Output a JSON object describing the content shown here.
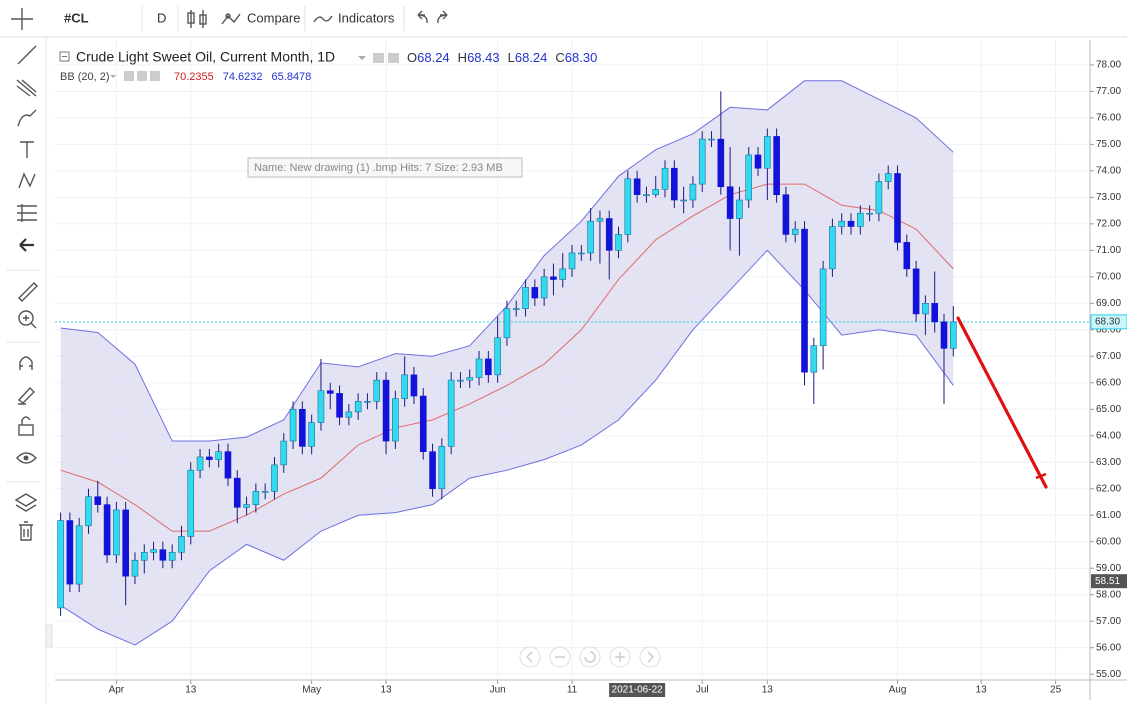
{
  "toolbar": {
    "symbol": "#CL",
    "interval": "D",
    "compare": "Compare",
    "indicators": "Indicators"
  },
  "tooltip": "Name: New drawing (1) .bmp Hits: 7 Size: 2.93 MB",
  "chart_data": {
    "type": "candlestick",
    "title": "Crude Light Sweet Oil, Current Month, 1D",
    "ohlc_legend": [
      {
        "key": "O",
        "value": "68.24"
      },
      {
        "key": "H",
        "value": "68.43"
      },
      {
        "key": "L",
        "value": "68.24"
      },
      {
        "key": "C",
        "value": "68.30"
      }
    ],
    "x": [
      -6,
      -5,
      -4,
      -3,
      -2,
      -1,
      0,
      1,
      2,
      3,
      4,
      5,
      6,
      7,
      8,
      9,
      10,
      11,
      12,
      13,
      14,
      15,
      16,
      17,
      18,
      19,
      20,
      21,
      22,
      23,
      24,
      25,
      26,
      27,
      28,
      29,
      30,
      31,
      32,
      33,
      34,
      35,
      36,
      37,
      38,
      39,
      40,
      41,
      42,
      43,
      44,
      45,
      46,
      47,
      48,
      49,
      50,
      51,
      52,
      53,
      54,
      55,
      56,
      57,
      58,
      59,
      60,
      61,
      62,
      63,
      64,
      65,
      66,
      67,
      68,
      69,
      70,
      71,
      72,
      73,
      74,
      75,
      76,
      77,
      78,
      79,
      80,
      81,
      82,
      83,
      84,
      85,
      86,
      87,
      88,
      89,
      90
    ],
    "open": [
      57.5,
      60.8,
      58.4,
      60.6,
      61.7,
      61.4,
      59.5,
      61.2,
      58.7,
      59.3,
      59.6,
      59.7,
      59.3,
      59.6,
      60.2,
      62.7,
      63.2,
      63.1,
      63.4,
      62.4,
      61.3,
      61.4,
      61.9,
      61.9,
      62.9,
      63.8,
      65.0,
      63.6,
      64.5,
      65.7,
      65.6,
      64.7,
      64.9,
      65.3,
      65.3,
      66.1,
      63.8,
      65.4,
      66.3,
      65.5,
      63.4,
      62.0,
      63.6,
      66.1,
      66.1,
      66.2,
      66.9,
      66.3,
      67.7,
      68.8,
      68.8,
      69.6,
      69.2,
      70.0,
      69.9,
      70.3,
      70.9,
      70.9,
      72.1,
      72.2,
      71.0,
      71.6,
      73.7,
      73.1,
      73.1,
      73.3,
      74.1,
      72.9,
      72.9,
      73.5,
      75.2,
      75.2,
      73.4,
      72.2,
      72.9,
      74.6,
      74.1,
      75.3,
      73.1,
      71.6,
      71.8,
      66.4,
      67.4,
      70.3,
      71.9,
      72.1,
      71.9,
      72.4,
      72.4,
      73.6,
      73.9,
      71.3,
      70.3,
      68.6,
      69.0,
      68.3,
      67.3
    ],
    "high": [
      61.1,
      61.1,
      60.9,
      62.0,
      62.3,
      61.7,
      61.5,
      61.5,
      59.6,
      59.9,
      60.0,
      60.0,
      59.9,
      60.6,
      63.0,
      63.5,
      63.5,
      63.7,
      63.7,
      62.7,
      61.7,
      62.2,
      62.2,
      63.2,
      64.1,
      65.3,
      65.3,
      64.8,
      66.9,
      66.0,
      65.9,
      65.2,
      65.6,
      65.6,
      66.4,
      66.4,
      65.7,
      67.0,
      66.6,
      65.8,
      63.7,
      63.9,
      66.4,
      66.4,
      66.5,
      67.2,
      67.2,
      68.5,
      69.1,
      69.1,
      69.9,
      69.9,
      70.3,
      70.5,
      70.9,
      71.2,
      71.2,
      72.6,
      72.5,
      72.5,
      71.9,
      74.0,
      74.0,
      73.4,
      73.8,
      74.4,
      74.4,
      73.4,
      73.8,
      75.5,
      75.5,
      77.0,
      74.9,
      73.4,
      74.9,
      74.9,
      75.6,
      75.6,
      73.4,
      72.1,
      72.1,
      67.7,
      70.6,
      72.2,
      72.4,
      72.4,
      72.7,
      72.7,
      73.9,
      74.2,
      74.2,
      71.6,
      70.6,
      69.3,
      70.2,
      68.6,
      68.9
    ],
    "low": [
      57.2,
      58.1,
      58.1,
      60.3,
      61.1,
      59.2,
      59.2,
      57.6,
      58.4,
      58.8,
      59.3,
      59.0,
      59.0,
      59.3,
      59.9,
      62.4,
      62.8,
      62.8,
      62.1,
      60.7,
      61.0,
      61.1,
      61.6,
      61.6,
      62.6,
      63.5,
      63.3,
      63.3,
      64.2,
      65.0,
      64.4,
      64.4,
      64.6,
      65.0,
      65.0,
      63.3,
      63.5,
      65.1,
      65.2,
      63.1,
      61.7,
      61.6,
      63.3,
      65.8,
      65.8,
      65.9,
      66.0,
      66.0,
      67.4,
      68.5,
      68.5,
      68.9,
      68.9,
      69.3,
      69.6,
      70.0,
      70.6,
      70.6,
      70.5,
      69.9,
      70.7,
      71.3,
      72.8,
      72.8,
      73.0,
      73.0,
      72.6,
      72.4,
      72.6,
      73.2,
      74.9,
      73.1,
      71.0,
      70.8,
      72.6,
      73.8,
      72.9,
      72.8,
      71.3,
      71.3,
      65.9,
      65.2,
      66.5,
      70.0,
      71.6,
      71.6,
      71.6,
      72.1,
      72.1,
      73.3,
      71.0,
      70.0,
      68.3,
      67.8,
      67.9,
      65.2,
      67.0
    ],
    "close": [
      60.8,
      58.4,
      60.6,
      61.7,
      61.4,
      59.5,
      61.2,
      58.7,
      59.3,
      59.6,
      59.7,
      59.3,
      59.6,
      60.2,
      62.7,
      63.2,
      63.1,
      63.4,
      62.4,
      61.3,
      61.4,
      61.9,
      61.9,
      62.9,
      63.8,
      65.0,
      63.6,
      64.5,
      65.7,
      65.6,
      64.7,
      64.9,
      65.3,
      65.3,
      66.1,
      63.8,
      65.4,
      66.3,
      65.5,
      63.4,
      62.0,
      63.6,
      66.1,
      66.1,
      66.2,
      66.9,
      66.3,
      67.7,
      68.8,
      68.8,
      69.6,
      69.2,
      70.0,
      69.9,
      70.3,
      70.9,
      70.9,
      72.1,
      72.2,
      71.0,
      71.6,
      73.7,
      73.1,
      73.1,
      73.3,
      74.1,
      72.9,
      72.9,
      73.5,
      75.2,
      75.2,
      73.4,
      72.2,
      72.9,
      74.6,
      74.1,
      75.3,
      73.1,
      71.6,
      71.8,
      66.4,
      67.4,
      70.3,
      71.9,
      72.1,
      71.9,
      72.4,
      72.4,
      73.6,
      73.9,
      71.3,
      70.3,
      68.6,
      69.0,
      68.3,
      67.3,
      68.3
    ],
    "up_color": "#33d9ef",
    "down_color": "#1212d8",
    "wick_color": "#1a1a80",
    "xlim": [
      -6.6,
      104.7
    ],
    "xticks": [
      {
        "value": 0,
        "label": "Apr"
      },
      {
        "value": 8,
        "label": "13"
      },
      {
        "value": 21,
        "label": "May"
      },
      {
        "value": 29,
        "label": "13"
      },
      {
        "value": 41,
        "label": "Jun"
      },
      {
        "value": 49,
        "label": "11"
      },
      {
        "value": 63,
        "label": "Jul"
      },
      {
        "value": 70,
        "label": "13"
      },
      {
        "value": 84,
        "label": "Aug"
      },
      {
        "value": 93,
        "label": "13"
      },
      {
        "value": 101,
        "label": "25"
      }
    ],
    "crosshair_x": {
      "value": 56,
      "label": "2021-06-22"
    },
    "ylim": [
      54.78,
      78.94
    ],
    "yticks": [
      {
        "value": 55,
        "label": "55.00"
      },
      {
        "value": 56,
        "label": "56.00"
      },
      {
        "value": 57,
        "label": "57.00"
      },
      {
        "value": 58,
        "label": "58.00"
      },
      {
        "value": 59,
        "label": "59.00"
      },
      {
        "value": 60,
        "label": "60.00"
      },
      {
        "value": 61,
        "label": "61.00"
      },
      {
        "value": 62,
        "label": "62.00"
      },
      {
        "value": 63,
        "label": "63.00"
      },
      {
        "value": 64,
        "label": "64.00"
      },
      {
        "value": 65,
        "label": "65.00"
      },
      {
        "value": 66,
        "label": "66.00"
      },
      {
        "value": 67,
        "label": "67.00"
      },
      {
        "value": 68,
        "label": "68.00"
      },
      {
        "value": 69,
        "label": "69.00"
      },
      {
        "value": 70,
        "label": "70.00"
      },
      {
        "value": 71,
        "label": "71.00"
      },
      {
        "value": 72,
        "label": "72.00"
      },
      {
        "value": 73,
        "label": "73.00"
      },
      {
        "value": 74,
        "label": "74.00"
      },
      {
        "value": 75,
        "label": "75.00"
      },
      {
        "value": 76,
        "label": "76.00"
      },
      {
        "value": 77,
        "label": "77.00"
      },
      {
        "value": 78,
        "label": "78.00"
      }
    ],
    "grid": true,
    "last_price": {
      "value": 68.3,
      "label": "68.30"
    },
    "price_marker": {
      "value": 58.51,
      "label": "58.51"
    },
    "indicator": {
      "name": "BB (20, 2)",
      "fill_color": "#d9d9f0",
      "x": [
        -6,
        -2,
        2,
        6,
        10,
        14,
        18,
        22,
        26,
        30,
        34,
        38,
        42,
        46,
        50,
        54,
        58,
        62,
        66,
        70,
        74,
        78,
        82,
        86,
        90
      ],
      "series": [
        {
          "legend": "70.2355",
          "color": "#e06a6a",
          "values": [
            62.7,
            62.25,
            61.4,
            60.4,
            60.4,
            61.0,
            61.8,
            62.4,
            63.65,
            64.3,
            64.6,
            65.2,
            65.9,
            66.7,
            68.0,
            69.9,
            71.4,
            72.3,
            73.1,
            73.5,
            73.5,
            72.7,
            72.5,
            71.8,
            70.3
          ]
        },
        {
          "legend": "74.6232",
          "color": "#6f6fe0",
          "values": [
            68.07,
            67.9,
            66.7,
            63.8,
            63.8,
            63.95,
            64.6,
            66.75,
            66.6,
            67.1,
            67.0,
            67.4,
            68.9,
            70.8,
            72.1,
            73.8,
            74.8,
            75.4,
            76.4,
            76.3,
            77.4,
            77.4,
            76.7,
            76.0,
            74.7
          ]
        },
        {
          "legend": "65.8478",
          "color": "#6f6fe0",
          "values": [
            57.6,
            56.7,
            56.1,
            57.0,
            58.9,
            59.9,
            59.3,
            60.4,
            61.0,
            61.1,
            61.4,
            62.4,
            62.7,
            63.1,
            63.65,
            64.6,
            66.1,
            68.0,
            69.5,
            71.0,
            69.5,
            67.8,
            68.0,
            67.8,
            65.9
          ]
        }
      ]
    }
  }
}
